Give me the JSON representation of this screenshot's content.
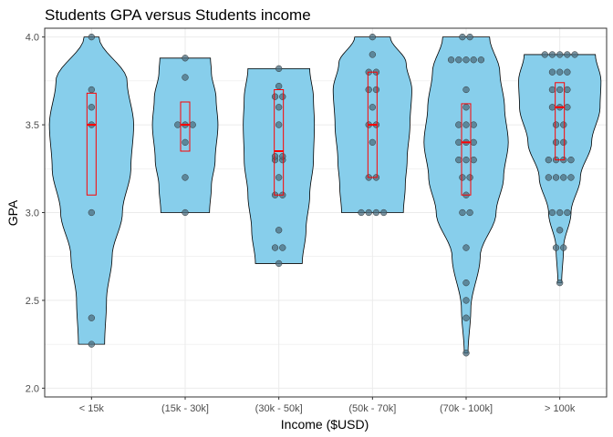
{
  "chart_data": {
    "type": "violin",
    "title": "Students GPA versus Students income",
    "xlabel": "Income ($USD)",
    "ylabel": "GPA",
    "ylim": [
      1.95,
      4.05
    ],
    "yticks": [
      "2.0",
      "2.5",
      "3.0",
      "3.5",
      "4.0"
    ],
    "grid": true,
    "colors": {
      "violin_fill": "#87CEEB",
      "violin_stroke": "#000000",
      "box_stroke": "#FF0000",
      "point": "#4d6f80",
      "grid": "#ebebeb",
      "panel_border": "#333333"
    },
    "categories": [
      {
        "label": "< 15k",
        "min": 2.25,
        "max": 4.0,
        "q1": 3.1,
        "median": 3.5,
        "q3": 3.68,
        "points": [
          2.25,
          2.4,
          3.0,
          3.5,
          3.6,
          3.7,
          4.0
        ],
        "density": [
          [
            2.25,
            0.14
          ],
          [
            2.5,
            0.16
          ],
          [
            2.75,
            0.22
          ],
          [
            3.0,
            0.33
          ],
          [
            3.25,
            0.42
          ],
          [
            3.5,
            0.45
          ],
          [
            3.75,
            0.38
          ],
          [
            4.0,
            0.08
          ]
        ]
      },
      {
        "label": "(15k - 30k]",
        "min": 3.0,
        "max": 3.88,
        "q1": 3.35,
        "median": 3.5,
        "q3": 3.63,
        "points": [
          3.0,
          3.2,
          3.4,
          3.5,
          3.5,
          3.5,
          3.77,
          3.88
        ],
        "density": [
          [
            3.0,
            0.26
          ],
          [
            3.15,
            0.28
          ],
          [
            3.3,
            0.32
          ],
          [
            3.5,
            0.35
          ],
          [
            3.65,
            0.33
          ],
          [
            3.8,
            0.28
          ],
          [
            3.88,
            0.27
          ]
        ]
      },
      {
        "label": "(30k - 50k]",
        "min": 2.71,
        "max": 3.82,
        "q1": 3.1,
        "median": 3.35,
        "q3": 3.7,
        "points": [
          2.71,
          2.8,
          2.8,
          2.9,
          3.1,
          3.1,
          3.2,
          3.3,
          3.3,
          3.32,
          3.32,
          3.5,
          3.6,
          3.66,
          3.66,
          3.72,
          3.82
        ],
        "density": [
          [
            2.71,
            0.25
          ],
          [
            2.9,
            0.29
          ],
          [
            3.1,
            0.33
          ],
          [
            3.3,
            0.37
          ],
          [
            3.5,
            0.38
          ],
          [
            3.65,
            0.37
          ],
          [
            3.82,
            0.33
          ]
        ]
      },
      {
        "label": "(50k - 70k]",
        "min": 3.0,
        "max": 4.0,
        "q1": 3.2,
        "median": 3.5,
        "q3": 3.8,
        "points": [
          3.0,
          3.0,
          3.0,
          3.0,
          3.2,
          3.2,
          3.4,
          3.5,
          3.5,
          3.6,
          3.7,
          3.7,
          3.8,
          3.8,
          3.9,
          4.0
        ],
        "density": [
          [
            3.0,
            0.33
          ],
          [
            3.15,
            0.35
          ],
          [
            3.3,
            0.37
          ],
          [
            3.5,
            0.4
          ],
          [
            3.7,
            0.42
          ],
          [
            3.85,
            0.36
          ],
          [
            4.0,
            0.19
          ]
        ]
      },
      {
        "label": "(70k - 100k]",
        "min": 2.2,
        "max": 4.0,
        "q1": 3.1,
        "median": 3.4,
        "q3": 3.62,
        "points": [
          2.2,
          2.4,
          2.5,
          2.6,
          2.8,
          3.0,
          3.0,
          3.1,
          3.2,
          3.2,
          3.3,
          3.3,
          3.3,
          3.4,
          3.4,
          3.4,
          3.5,
          3.5,
          3.5,
          3.6,
          3.7,
          3.87,
          3.87,
          3.87,
          3.87,
          3.87,
          4.0,
          4.0
        ],
        "density": [
          [
            2.2,
            0.02
          ],
          [
            2.45,
            0.05
          ],
          [
            2.75,
            0.15
          ],
          [
            3.0,
            0.32
          ],
          [
            3.2,
            0.4
          ],
          [
            3.4,
            0.45
          ],
          [
            3.6,
            0.41
          ],
          [
            3.8,
            0.36
          ],
          [
            4.0,
            0.25
          ]
        ]
      },
      {
        "label": "> 100k",
        "min": 2.6,
        "max": 3.9,
        "q1": 3.3,
        "median": 3.6,
        "q3": 3.74,
        "points": [
          2.6,
          2.8,
          2.8,
          2.9,
          3.0,
          3.0,
          3.0,
          3.2,
          3.2,
          3.2,
          3.2,
          3.3,
          3.3,
          3.3,
          3.3,
          3.4,
          3.4,
          3.5,
          3.5,
          3.6,
          3.6,
          3.6,
          3.7,
          3.7,
          3.7,
          3.8,
          3.8,
          3.8,
          3.9,
          3.9,
          3.9,
          3.9,
          3.9
        ],
        "density": [
          [
            2.6,
            0.02
          ],
          [
            2.8,
            0.04
          ],
          [
            3.0,
            0.12
          ],
          [
            3.2,
            0.22
          ],
          [
            3.4,
            0.34
          ],
          [
            3.6,
            0.43
          ],
          [
            3.75,
            0.44
          ],
          [
            3.9,
            0.38
          ]
        ]
      }
    ]
  }
}
